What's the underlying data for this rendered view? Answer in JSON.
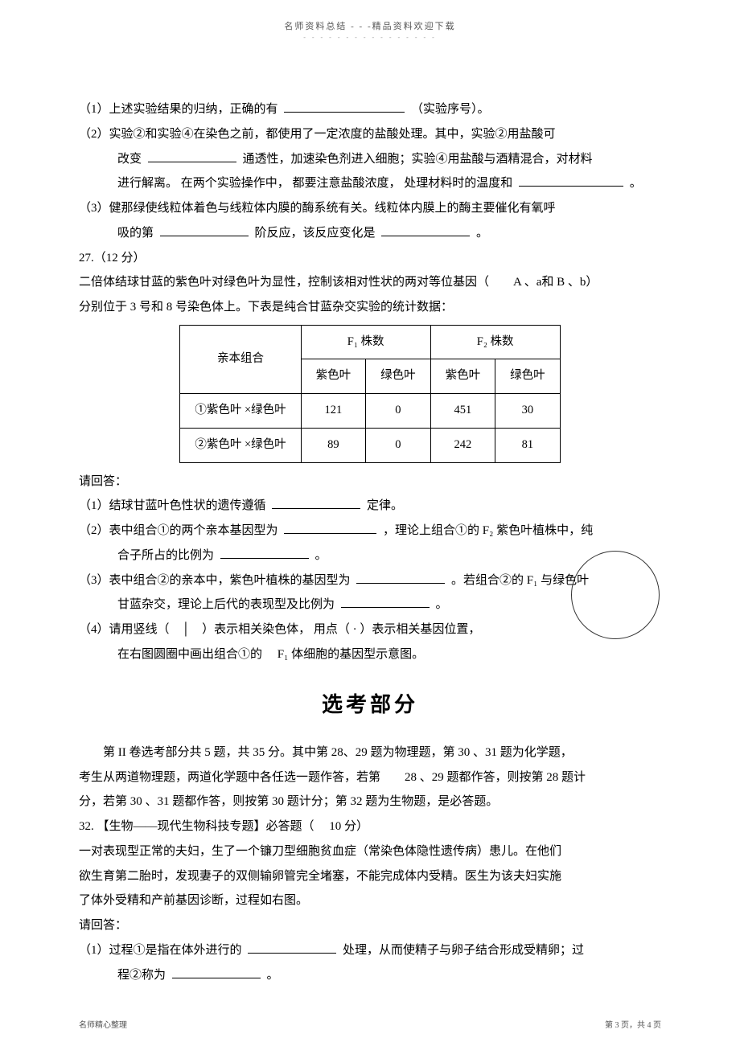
{
  "header": {
    "main": "名师资料总结  -  -  -精品资料欢迎下载",
    "sub": "- - - - - - - - - - - - - - - -"
  },
  "q1_line1_prefix": "（1）上述实验结果的归纳，正确的有",
  "q1_line1_suffix": "（实验序号）。",
  "q2_line1": "（2）实验②和实验④在染色之前，都使用了一定浓度的盐酸处理。其中，实验②用盐酸可",
  "q2_line2a": "改变",
  "q2_line2b": "通透性，加速染色剂进入细胞；实验④用盐酸与酒精混合，对材料",
  "q2_line3a": "进行解离。 在两个实验操作中， 都要注意盐酸浓度， 处理材料时的温度和",
  "q2_line3b": "。",
  "q3_line1": "（3）健那绿使线粒体着色与线粒体内膜的酶系统有关。线粒体内膜上的酶主要催化有氧呼",
  "q3_line2a": "吸的第",
  "q3_line2b": "阶反应，该反应变化是",
  "q3_line2c": "。",
  "q27_header": "27.（12 分）",
  "q27_para1": "二倍体结球甘蓝的紫色叶对绿色叶为显性，控制该相对性状的两对等位基因（　　A 、a和 B 、b）",
  "q27_para2": "分别位于  3 号和 8 号染色体上。下表是纯合甘蓝杂交实验的统计数据：",
  "table": {
    "header_parent": "亲本组合",
    "header_f1": "F₁ 株数",
    "header_f2": "F₂ 株数",
    "col_purple": "紫色叶",
    "col_green": "绿色叶",
    "row1_label": "①紫色叶  ×绿色叶",
    "row1_f1p": "121",
    "row1_f1g": "0",
    "row1_f2p": "451",
    "row1_f2g": "30",
    "row2_label": "②紫色叶  ×绿色叶",
    "row2_f1p": "89",
    "row2_f1g": "0",
    "row2_f2p": "242",
    "row2_f2g": "81"
  },
  "please_answer": "请回答：",
  "q27_1a": "（1）结球甘蓝叶色性状的遗传遵循",
  "q27_1b": "定律。",
  "q27_2a": "（2）表中组合①的两个亲本基因型为",
  "q27_2b": "，理论上组合①的   F₂ 紫色叶植株中，纯",
  "q27_2c": "合子所占的比例为",
  "q27_2d": "。",
  "q27_3a": "（3）表中组合②的亲本中，紫色叶植株的基因型为",
  "q27_3b": "。若组合②的   F₁ 与绿色叶",
  "q27_3c": "甘蓝杂交，理论上后代的表现型及比例为",
  "q27_3d": "。",
  "q27_4a": "（4）请用竖线（　│　）表示相关染色体，  用点（  ·  ）表示相关基因位置，",
  "q27_4b": "在右图圆圈中画出组合①的　 F₁ 体细胞的基因型示意图。",
  "section_title": "选考部分",
  "xk_p1": "　　第 II 卷选考部分共  5 题，共 35 分。其中第  28、29 题为物理题，第  30 、31 题为化学题，",
  "xk_p2": "考生从两道物理题，两道化学题中各任选一题作答，若第　　28 、29 题都作答，则按第  28 题计",
  "xk_p3": "分，若第  30 、31 题都作答，则按第  30 题计分；第  32 题为生物题，是必答题。",
  "q32_header": "32. 【生物——现代生物科技专题】必答题（　 10 分）",
  "q32_p1": "一对表现型正常的夫妇，生了一个镰刀型细胞贫血症（常染色体隐性遗传病）患儿。在他们",
  "q32_p2": "欲生育第二胎时，发现妻子的双侧输卵管完全堵塞，不能完成体内受精。医生为该夫妇实施",
  "q32_p3": "了体外受精和产前基因诊断，过程如右图。",
  "q32_1a": "（1）过程①是指在体外进行的",
  "q32_1b": "处理，从而使精子与卵子结合形成受精卵；过",
  "q32_1c": "程②称为",
  "q32_1d": "。",
  "footer_left": "名师精心整理",
  "footer_right": "第 3 页，共 4 页"
}
